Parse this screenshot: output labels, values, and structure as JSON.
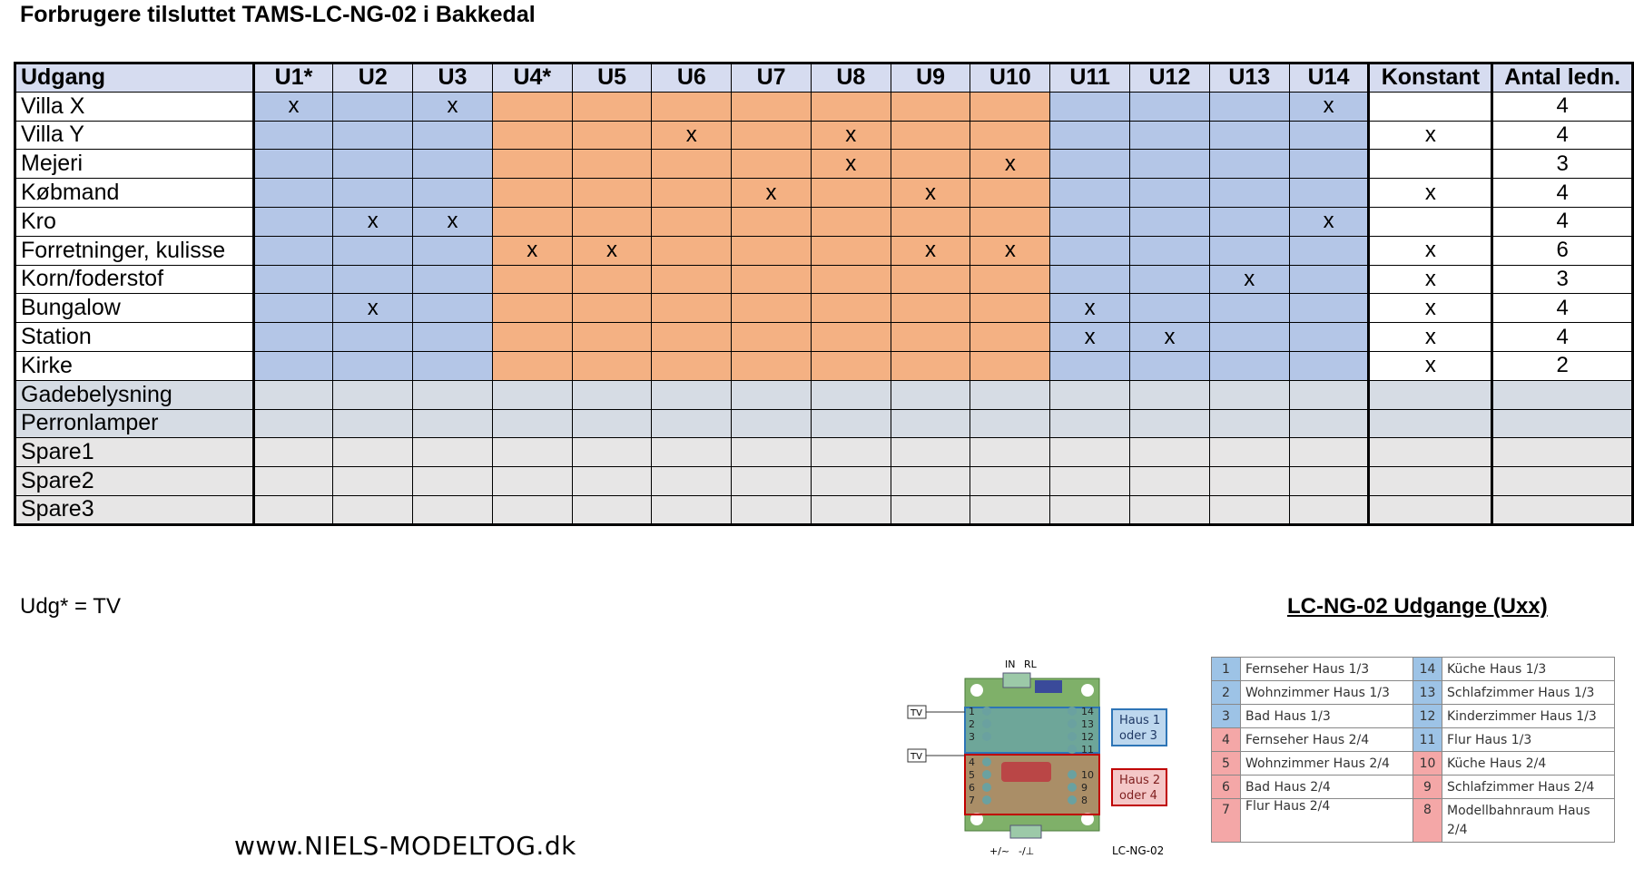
{
  "title": "Forbrugere tilsluttet TAMS-LC-NG-02 i Bakkedal",
  "table": {
    "headers": [
      "Udgang",
      "U1*",
      "U2",
      "U3",
      "U4*",
      "U5",
      "U6",
      "U7",
      "U8",
      "U9",
      "U10",
      "U11",
      "U12",
      "U13",
      "U14",
      "Konstant",
      "Antal ledn."
    ],
    "rows": [
      {
        "name": "Villa X",
        "cells": [
          "x",
          "",
          "x",
          "",
          "",
          "",
          "",
          "",
          "",
          "",
          "",
          "",
          "",
          "x",
          "",
          "4"
        ]
      },
      {
        "name": "Villa Y",
        "cells": [
          "",
          "",
          "",
          "",
          "",
          "x",
          "",
          "x",
          "",
          "",
          "",
          "",
          "",
          "",
          "x",
          "4"
        ]
      },
      {
        "name": "Mejeri",
        "cells": [
          "",
          "",
          "",
          "",
          "",
          "",
          "",
          "x",
          "",
          "x",
          "",
          "",
          "",
          "",
          "",
          "3"
        ]
      },
      {
        "name": "Købmand",
        "cells": [
          "",
          "",
          "",
          "",
          "",
          "",
          "x",
          "",
          "x",
          "",
          "",
          "",
          "",
          "",
          "x",
          "4"
        ]
      },
      {
        "name": "Kro",
        "cells": [
          "",
          "x",
          "x",
          "",
          "",
          "",
          "",
          "",
          "",
          "",
          "",
          "",
          "",
          "x",
          "",
          "4"
        ]
      },
      {
        "name": "Forretninger, kulisse",
        "cells": [
          "",
          "",
          "",
          "x",
          "x",
          "",
          "",
          "",
          "x",
          "x",
          "",
          "",
          "",
          "",
          "x",
          "6"
        ]
      },
      {
        "name": "Korn/foderstof",
        "cells": [
          "",
          "",
          "",
          "",
          "",
          "",
          "",
          "",
          "",
          "",
          "",
          "",
          "x",
          "",
          "x",
          "3"
        ]
      },
      {
        "name": "Bungalow",
        "cells": [
          "",
          "x",
          "",
          "",
          "",
          "",
          "",
          "",
          "",
          "",
          "x",
          "",
          "",
          "",
          "x",
          "4"
        ]
      },
      {
        "name": "Station",
        "cells": [
          "",
          "",
          "",
          "",
          "",
          "",
          "",
          "",
          "",
          "",
          "x",
          "x",
          "",
          "",
          "x",
          "4"
        ]
      },
      {
        "name": "Kirke",
        "cells": [
          "",
          "",
          "",
          "",
          "",
          "",
          "",
          "",
          "",
          "",
          "",
          "",
          "",
          "",
          "x",
          "2"
        ]
      },
      {
        "name": "Gadebelysning",
        "cells": [
          "",
          "",
          "",
          "",
          "",
          "",
          "",
          "",
          "",
          "",
          "",
          "",
          "",
          "",
          "",
          ""
        ]
      },
      {
        "name": "Perronlamper",
        "cells": [
          "",
          "",
          "",
          "",
          "",
          "",
          "",
          "",
          "",
          "",
          "",
          "",
          "",
          "",
          "",
          ""
        ]
      },
      {
        "name": "Spare1",
        "cells": [
          "",
          "",
          "",
          "",
          "",
          "",
          "",
          "",
          "",
          "",
          "",
          "",
          "",
          "",
          "",
          ""
        ]
      },
      {
        "name": "Spare2",
        "cells": [
          "",
          "",
          "",
          "",
          "",
          "",
          "",
          "",
          "",
          "",
          "",
          "",
          "",
          "",
          "",
          ""
        ]
      },
      {
        "name": "Spare3",
        "cells": [
          "",
          "",
          "",
          "",
          "",
          "",
          "",
          "",
          "",
          "",
          "",
          "",
          "",
          "",
          "",
          ""
        ]
      }
    ]
  },
  "colors": {
    "blue": "#b4c6e7",
    "orange": "#f4b183",
    "gray_blue": "#d6dce4",
    "gray": "#e7e6e6",
    "header": "#d6dcf0",
    "legend_blue": "#9dc3e6",
    "legend_red": "#f4a7a7"
  },
  "note": "Udg* = TV",
  "legend_title": "LC-NG-02 Udgange (Uxx)",
  "board": {
    "top_label_in": "IN",
    "top_label_rl": "RL",
    "tv1": "TV",
    "tv2": "TV",
    "haus1_line1": "Haus 1",
    "haus1_line2": "oder 3",
    "haus2_line1": "Haus 2",
    "haus2_line2": "oder 4",
    "bottom_left": "+/~",
    "bottom_right": "-/⊥",
    "model": "LC-NG-02",
    "left_pins": [
      "1",
      "2",
      "3",
      "4",
      "5",
      "6",
      "7"
    ],
    "right_pins": [
      "14",
      "13",
      "12",
      "11",
      "10",
      "9",
      "8"
    ]
  },
  "legend": [
    {
      "n1": "1",
      "t1": "Fernseher Haus 1/3",
      "n2": "14",
      "t2": "Küche Haus 1/3",
      "c": "blue"
    },
    {
      "n1": "2",
      "t1": "Wohnzimmer Haus 1/3",
      "n2": "13",
      "t2": "Schlafzimmer Haus 1/3",
      "c": "blue"
    },
    {
      "n1": "3",
      "t1": "Bad Haus 1/3",
      "n2": "12",
      "t2": "Kinderzimmer Haus 1/3",
      "c": "blue"
    },
    {
      "n1": "4",
      "t1": "Fernseher Haus 2/4",
      "n2": "11",
      "t2": "Flur Haus 1/3",
      "c": "mixed"
    },
    {
      "n1": "5",
      "t1": "Wohnzimmer Haus 2/4",
      "n2": "10",
      "t2": "Küche Haus 2/4",
      "c": "red"
    },
    {
      "n1": "6",
      "t1": "Bad Haus 2/4",
      "n2": "9",
      "t2": "Schlafzimmer Haus 2/4",
      "c": "red"
    },
    {
      "n1": "7",
      "t1": "Flur Haus 2/4",
      "n2": "8",
      "t2": "Modellbahnraum Haus 2/4",
      "c": "red"
    }
  ],
  "website": "www.NIELS-MODELTOG.dk"
}
